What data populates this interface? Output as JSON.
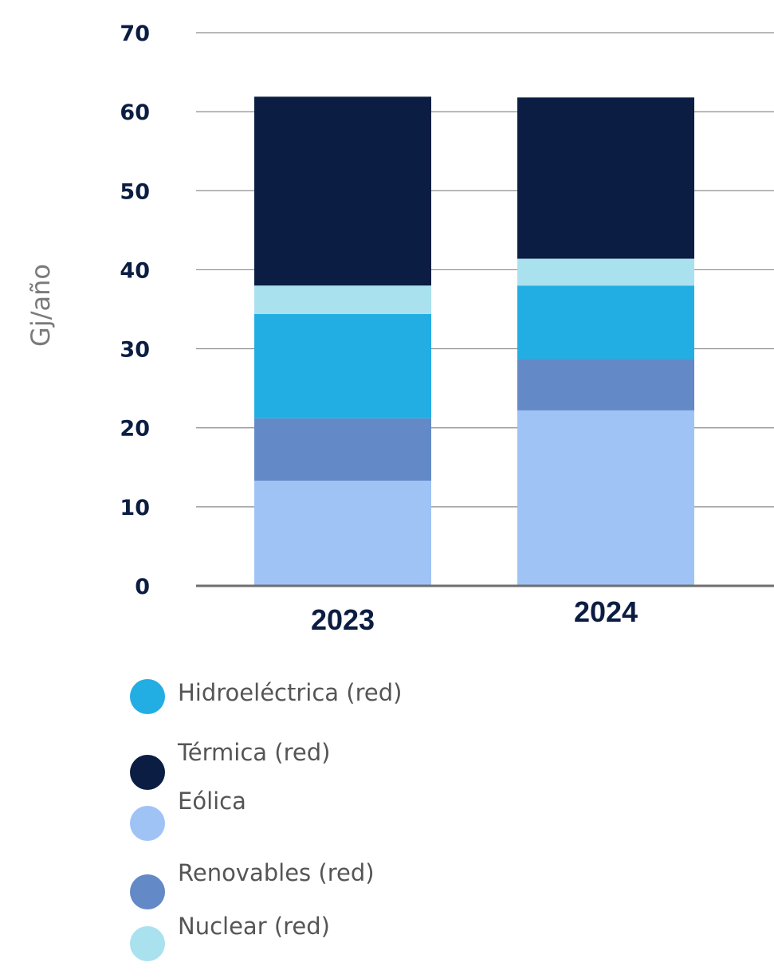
{
  "chart_data": {
    "type": "bar",
    "stacked": true,
    "categories": [
      "2023",
      "2024"
    ],
    "ylabel": "Gj/año",
    "xlabel": "",
    "ylim": [
      0,
      70
    ],
    "yticks": [
      "0",
      "10",
      "20",
      "30",
      "40",
      "50",
      "60",
      "70"
    ],
    "grid": true,
    "legend_position": "bottom",
    "series": [
      {
        "name": "Eólica",
        "color": "#9fc3f5",
        "values": [
          13.3,
          22.2
        ]
      },
      {
        "name": "Renovables (red)",
        "color": "#6389c6",
        "values": [
          7.9,
          6.5
        ]
      },
      {
        "name": "Hidroeléctrica (red)",
        "color": "#22aee3",
        "values": [
          13.2,
          9.3
        ]
      },
      {
        "name": "Nuclear (red)",
        "color": "#aae1ef",
        "values": [
          3.6,
          3.4
        ]
      },
      {
        "name": "Térmica (red)",
        "color": "#0b1d42",
        "values": [
          23.9,
          20.4
        ]
      }
    ],
    "legend": [
      {
        "label": "Hidroeléctrica (red)",
        "color": "#22aee3"
      },
      {
        "label": "Térmica (red)",
        "color": "#0b1d42"
      },
      {
        "label": "Eólica",
        "color": "#9fc3f5"
      },
      {
        "label": "Renovables (red)",
        "color": "#6389c6"
      },
      {
        "label": "Nuclear (red)",
        "color": "#aae1ef"
      }
    ]
  }
}
